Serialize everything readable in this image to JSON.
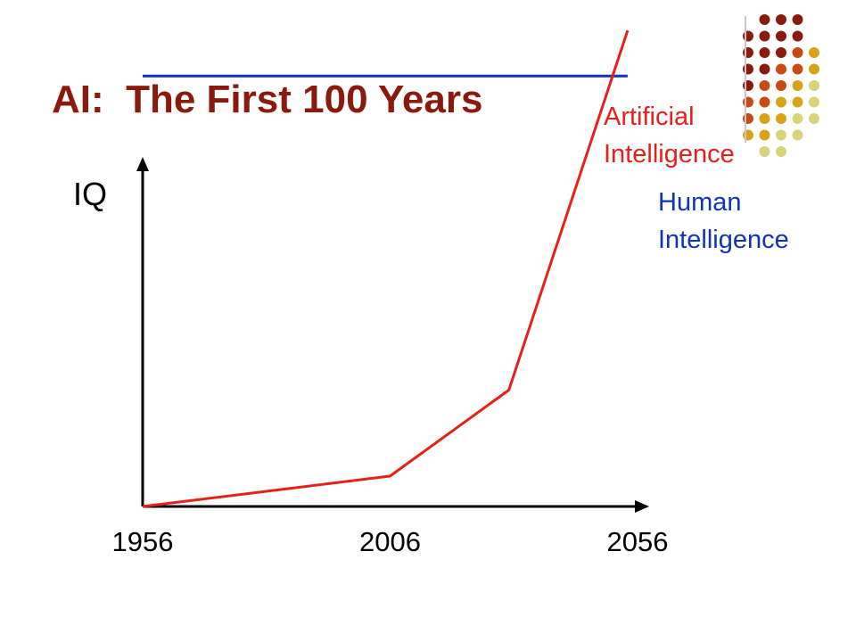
{
  "slide": {
    "title": "AI:  The First 100 Years",
    "decoration": {
      "dot_colors": [
        "#8b1a0e",
        "#c94a16",
        "#d8a318",
        "#d8d47a"
      ],
      "divider_color": "#c8c8c8"
    }
  },
  "chart_data": {
    "type": "line",
    "title": "",
    "xlabel": "",
    "ylabel": "IQ",
    "x_ticks": [
      1956,
      2006,
      2056
    ],
    "xlim": [
      1956,
      2056
    ],
    "ylim": [
      0,
      100
    ],
    "grid": false,
    "legend": "inline labels at line ends",
    "series": [
      {
        "name": "Human Intelligence",
        "label_lines": [
          "Human",
          "Intelligence"
        ],
        "color": "#1233b8",
        "x": [
          1956,
          2054
        ],
        "y": [
          85,
          85
        ]
      },
      {
        "name": "Artificial Intelligence",
        "label_lines": [
          "Artificial",
          "Intelligence"
        ],
        "color": "#e8201b",
        "x": [
          1956,
          2006,
          2030,
          2054
        ],
        "y": [
          0,
          6,
          23,
          94
        ]
      }
    ]
  }
}
